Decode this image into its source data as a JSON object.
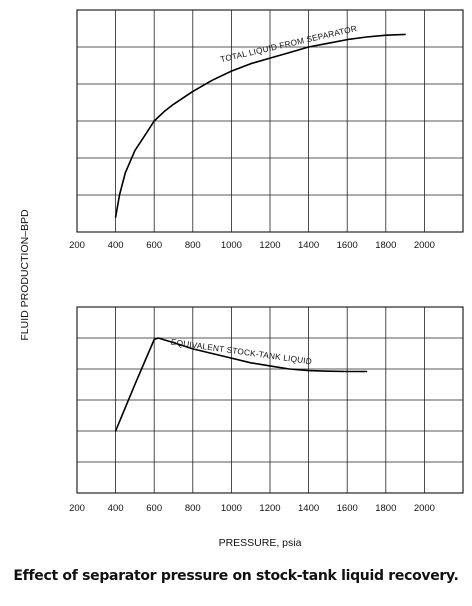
{
  "caption": "Effect of separator pressure on stock-tank liquid recovery.",
  "shared_ylabel": "FLUID PRODUCTION–BPD",
  "shared_xlabel": "PRESSURE, psia",
  "chart_data": [
    {
      "type": "line",
      "xlim": [
        200,
        2200
      ],
      "ylim": [
        0,
        6
      ],
      "x_ticks": [
        "200",
        "400",
        "600",
        "800",
        "1000",
        "1200",
        "1400",
        "1600",
        "1800",
        "2000"
      ],
      "grid": true,
      "series": [
        {
          "name": "TOTAL LIQUID FROM SEPARATOR",
          "x": [
            400,
            420,
            450,
            500,
            550,
            600,
            650,
            700,
            800,
            900,
            1000,
            1100,
            1200,
            1300,
            1400,
            1500,
            1600,
            1700,
            1800,
            1900
          ],
          "y": [
            0.4,
            1.0,
            1.6,
            2.2,
            2.6,
            3.0,
            3.25,
            3.45,
            3.8,
            4.1,
            4.35,
            4.55,
            4.7,
            4.85,
            5.0,
            5.1,
            5.2,
            5.27,
            5.32,
            5.34
          ]
        }
      ]
    },
    {
      "type": "line",
      "xlim": [
        200,
        2200
      ],
      "ylim": [
        0,
        6
      ],
      "x_ticks": [
        "200",
        "400",
        "600",
        "800",
        "1000",
        "1200",
        "1400",
        "1600",
        "1800",
        "2000"
      ],
      "grid": true,
      "series": [
        {
          "name": "EQUIVALENT STOCK-TANK LIQUID",
          "x": [
            400,
            500,
            600,
            620,
            700,
            800,
            900,
            1000,
            1100,
            1200,
            1300,
            1400,
            1500,
            1600,
            1700
          ],
          "y": [
            2.0,
            3.5,
            4.95,
            5.0,
            4.85,
            4.65,
            4.5,
            4.35,
            4.2,
            4.1,
            4.0,
            3.95,
            3.93,
            3.92,
            3.92
          ]
        }
      ]
    }
  ]
}
